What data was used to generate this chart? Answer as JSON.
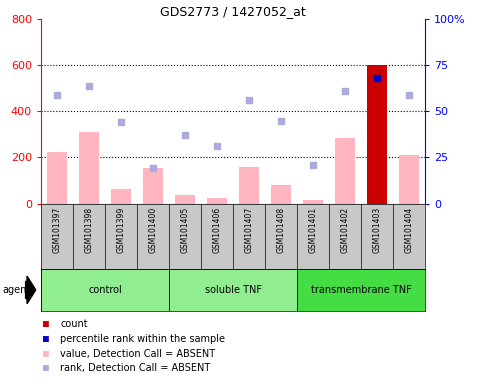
{
  "title": "GDS2773 / 1427052_at",
  "samples": [
    "GSM101397",
    "GSM101398",
    "GSM101399",
    "GSM101400",
    "GSM101405",
    "GSM101406",
    "GSM101407",
    "GSM101408",
    "GSM101401",
    "GSM101402",
    "GSM101403",
    "GSM101404"
  ],
  "groups": [
    {
      "name": "control",
      "start": 0,
      "end": 4,
      "color": "#90EE90"
    },
    {
      "name": "soluble TNF",
      "start": 4,
      "end": 8,
      "color": "#90EE90"
    },
    {
      "name": "transmembrane TNF",
      "start": 8,
      "end": 12,
      "color": "#44DD44"
    }
  ],
  "bar_values": [
    225,
    310,
    65,
    155,
    35,
    25,
    160,
    80,
    15,
    285,
    600,
    210
  ],
  "bar_absent": [
    true,
    true,
    true,
    true,
    true,
    true,
    true,
    true,
    true,
    true,
    false,
    true
  ],
  "scatter_pct": [
    59,
    64,
    44,
    19,
    37,
    31,
    56,
    45,
    21,
    61,
    68,
    59
  ],
  "scatter_absent": [
    true,
    true,
    true,
    true,
    true,
    true,
    true,
    true,
    true,
    true,
    false,
    true
  ],
  "ylim_left": [
    0,
    800
  ],
  "ylim_right": [
    0,
    100
  ],
  "yticks_left": [
    0,
    200,
    400,
    600,
    800
  ],
  "ytick_labels_left": [
    "0",
    "200",
    "400",
    "600",
    "800"
  ],
  "yticks_right": [
    0,
    25,
    50,
    75,
    100
  ],
  "ytick_labels_right": [
    "0",
    "25",
    "50",
    "75",
    "100%"
  ],
  "bar_color_absent": "#FFB6C1",
  "bar_color_present": "#CC0000",
  "scatter_color_absent": "#AAAADD",
  "scatter_color_present": "#0000CC",
  "bg_color": "#C8C8C8",
  "group_color_light": "#90EE90",
  "group_color_dark": "#44DD44",
  "legend_items": [
    {
      "color": "#CC0000",
      "label": "count"
    },
    {
      "color": "#0000CC",
      "label": "percentile rank within the sample"
    },
    {
      "color": "#FFB6C1",
      "label": "value, Detection Call = ABSENT"
    },
    {
      "color": "#AAAADD",
      "label": "rank, Detection Call = ABSENT"
    }
  ]
}
